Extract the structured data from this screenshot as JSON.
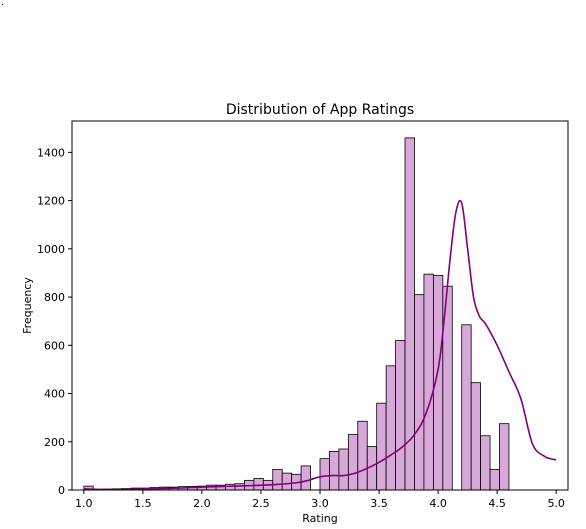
{
  "chart_data": {
    "type": "bar",
    "title": "Distribution of App Ratings",
    "xlabel": "Rating",
    "ylabel": "Frequency",
    "xlim": [
      0.9,
      5.1
    ],
    "ylim": [
      0,
      1530
    ],
    "xticks": [
      1.0,
      1.5,
      2.0,
      2.5,
      3.0,
      3.5,
      4.0,
      4.5,
      5.0
    ],
    "xtick_labels": [
      "1.0",
      "1.5",
      "2.0",
      "2.5",
      "3.0",
      "3.5",
      "4.0",
      "4.5",
      "5.0"
    ],
    "yticks": [
      0,
      200,
      400,
      600,
      800,
      1000,
      1200,
      1400
    ],
    "ytick_labels": [
      "0",
      "200",
      "400",
      "600",
      "800",
      "1000",
      "1200",
      "1400"
    ],
    "bin_width": 0.08,
    "bins_start": 1.0,
    "values": [
      16,
      3,
      4,
      5,
      6,
      8,
      8,
      10,
      12,
      12,
      14,
      15,
      16,
      20,
      20,
      24,
      26,
      40,
      48,
      40,
      85,
      70,
      65,
      100,
      0,
      130,
      160,
      170,
      230,
      285,
      180,
      360,
      515,
      620,
      1460,
      810,
      895,
      890,
      845,
      0,
      685,
      445,
      225,
      85,
      275
    ],
    "kde": {
      "x": [
        1.0,
        1.1,
        1.3,
        1.5,
        1.8,
        2.0,
        2.2,
        2.4,
        2.6,
        2.8,
        2.9,
        3.0,
        3.1,
        3.2,
        3.3,
        3.4,
        3.5,
        3.6,
        3.7,
        3.8,
        3.9,
        4.0,
        4.05,
        4.1,
        4.15,
        4.2,
        4.25,
        4.3,
        4.35,
        4.4,
        4.5,
        4.6,
        4.7,
        4.8,
        4.9,
        4.95,
        5.0
      ],
      "y": [
        5,
        3,
        2,
        4,
        8,
        12,
        15,
        18,
        22,
        30,
        40,
        55,
        60,
        60,
        70,
        90,
        115,
        145,
        180,
        230,
        320,
        500,
        700,
        950,
        1150,
        1190,
        1000,
        800,
        720,
        690,
        600,
        490,
        380,
        190,
        140,
        130,
        125
      ]
    },
    "bar_fill": "#d8a8d8",
    "bar_stroke": "#000000",
    "kde_color": "#800080",
    "grid": false,
    "legend": "none"
  },
  "corner_mark": "."
}
